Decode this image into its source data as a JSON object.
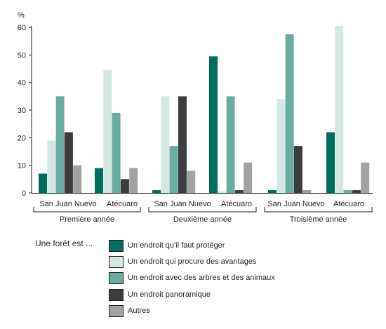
{
  "chart_data": {
    "type": "bar",
    "unit_label": "%",
    "ylim": [
      0,
      60
    ],
    "yticks": [
      0,
      10,
      20,
      30,
      40,
      50,
      60
    ],
    "groups": [
      {
        "label": "Première année",
        "subgroups": [
          "San Juan Nuevo",
          "Atécuaro"
        ]
      },
      {
        "label": "Deuxième année",
        "subgroups": [
          "San Juan Nuevo",
          "Atécuaro"
        ]
      },
      {
        "label": "Troisième année",
        "subgroups": [
          "San Juan Nuevo",
          "Atécuaro"
        ]
      }
    ],
    "categories": [
      "Première année – San Juan Nuevo",
      "Première année – Atécuaro",
      "Deuxième année – San Juan Nuevo",
      "Deuxième année – Atécuaro",
      "Troisième année – San Juan Nuevo",
      "Troisième année – Atécuaro"
    ],
    "series": [
      {
        "name": "Un endroit qu'il faut protéger",
        "color": "#006e5f",
        "values": [
          7,
          9,
          1,
          49.5,
          1,
          22
        ]
      },
      {
        "name": "Un endroit qui procure des avantages",
        "color": "#d3e8e3",
        "values": [
          19,
          44.5,
          35,
          0.5,
          34,
          60.5
        ]
      },
      {
        "name": "Un endroit avec des arbres et des animaux",
        "color": "#69ada0",
        "values": [
          35,
          29,
          17,
          35,
          57.5,
          1
        ]
      },
      {
        "name": "Un endroit panoramique",
        "color": "#3d3d3f",
        "values": [
          22,
          5,
          35,
          1,
          17,
          1
        ]
      },
      {
        "name": "Autres",
        "color": "#a2a2a2",
        "values": [
          10,
          9,
          8,
          11,
          1,
          11
        ]
      }
    ],
    "legend": {
      "title": "Une forêt est ...",
      "position": "bottom"
    },
    "grid": false
  }
}
